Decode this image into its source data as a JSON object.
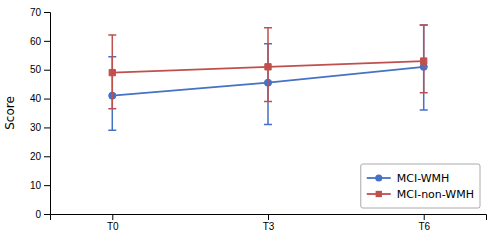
{
  "chart_data": {
    "type": "line",
    "categories": [
      "T0",
      "T3",
      "T6"
    ],
    "series": [
      {
        "name": "MCI-WMH",
        "color": "#4472C4",
        "marker": "circle",
        "values": [
          41.0,
          45.5,
          51.0
        ],
        "error_lower": [
          12.0,
          14.5,
          15.0
        ],
        "error_upper": [
          13.5,
          13.5,
          14.5
        ]
      },
      {
        "name": "MCI-non-WMH",
        "color": "#C0504D",
        "marker": "square",
        "values": [
          49.0,
          51.0,
          53.0
        ],
        "error_lower": [
          12.5,
          12.0,
          11.0
        ],
        "error_upper": [
          13.0,
          13.5,
          12.5
        ]
      }
    ],
    "y_label": "Score",
    "ylim": [
      0,
      70
    ],
    "yticks": [
      0,
      10,
      20,
      30,
      40,
      50,
      60,
      70
    ],
    "legend": "lower right"
  }
}
